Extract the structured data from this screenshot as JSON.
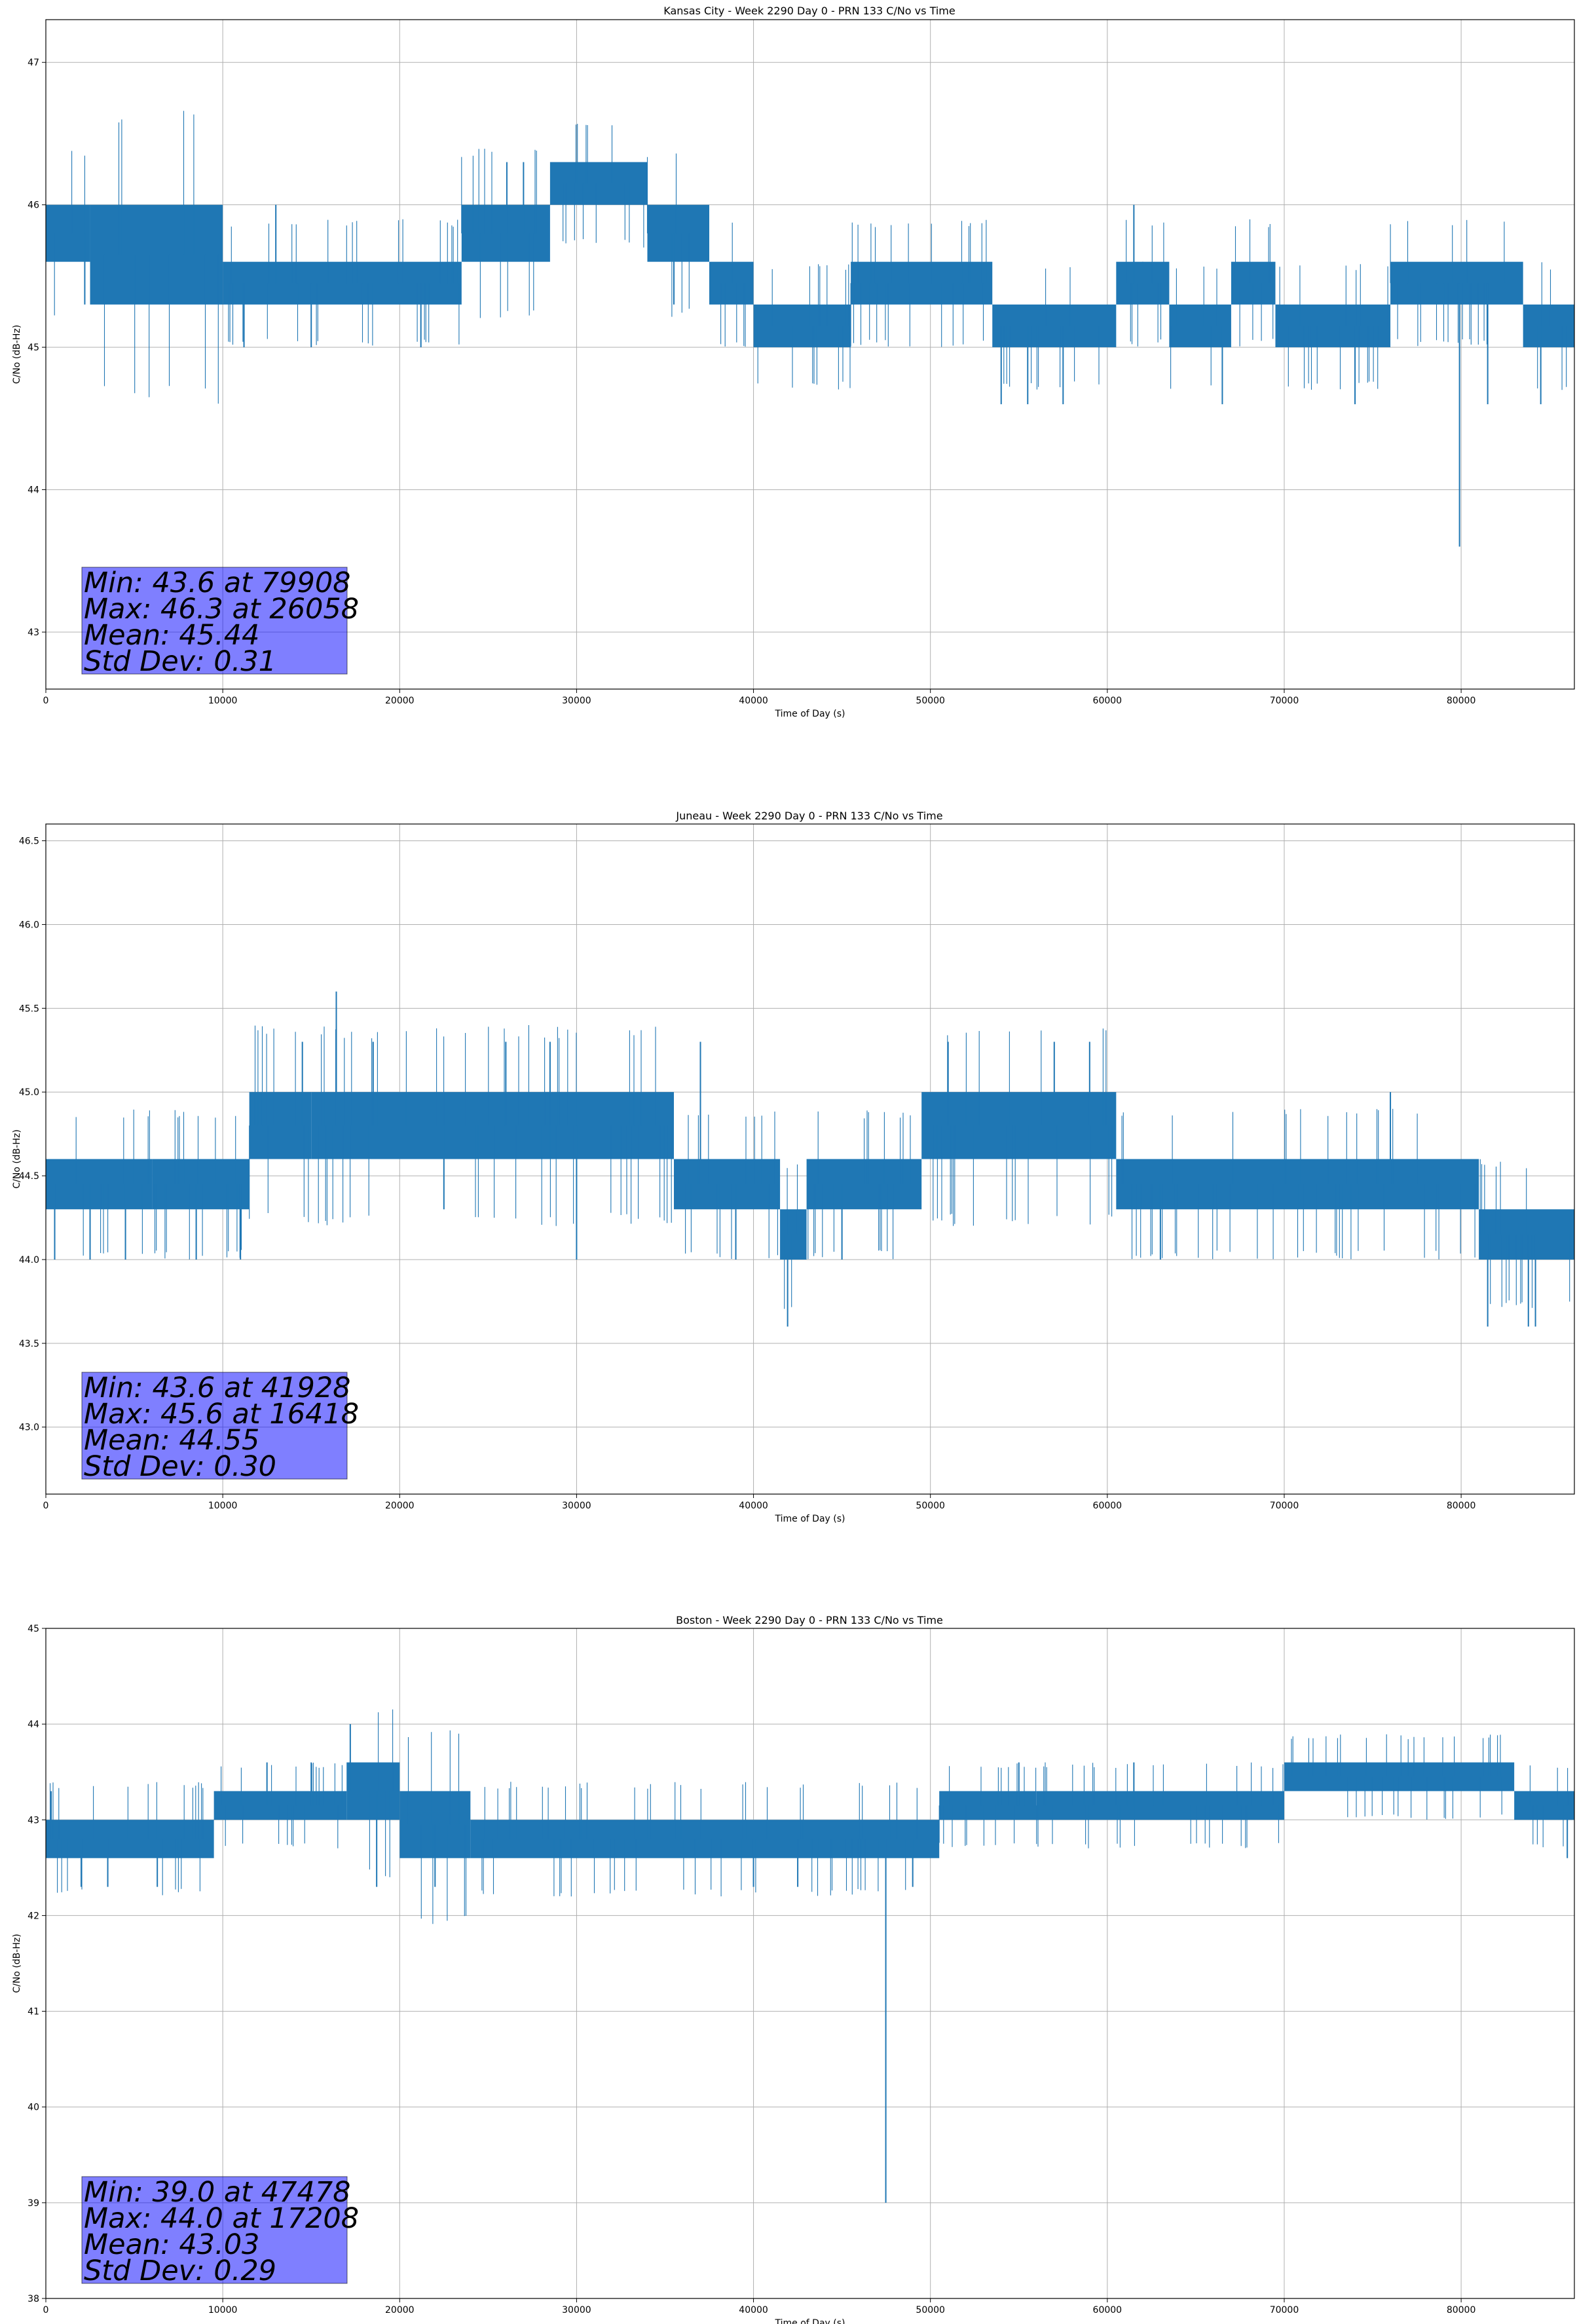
{
  "chart_data": [
    {
      "type": "line",
      "title": "Kansas City - Week 2290 Day 0 - PRN 133 C/No vs Time",
      "xlabel": "Time of Day (s)",
      "ylabel": "C/No (dB-Hz)",
      "xlim": [
        0,
        86400
      ],
      "ylim": [
        42.6,
        47.3
      ],
      "xticks": [
        0,
        10000,
        20000,
        30000,
        40000,
        50000,
        60000,
        70000,
        80000
      ],
      "yticks": [
        43,
        44,
        45,
        46,
        47
      ],
      "ytick_labels": [
        "43",
        "44",
        "45",
        "46",
        "47"
      ],
      "grid": true,
      "series": [
        {
          "color": "#1f77b4",
          "segments": [
            {
              "x0": 0,
              "x1": 2500,
              "low": 45.6,
              "high": 46.0
            },
            {
              "x0": 2500,
              "x1": 10000,
              "low": 45.3,
              "high": 46.0
            },
            {
              "x0": 10000,
              "x1": 23500,
              "low": 45.3,
              "high": 45.6
            },
            {
              "x0": 23500,
              "x1": 28500,
              "low": 45.6,
              "high": 46.0
            },
            {
              "x0": 28500,
              "x1": 34000,
              "low": 46.0,
              "high": 46.3
            },
            {
              "x0": 34000,
              "x1": 37500,
              "low": 45.6,
              "high": 46.0
            },
            {
              "x0": 37500,
              "x1": 40000,
              "low": 45.3,
              "high": 45.6
            },
            {
              "x0": 40000,
              "x1": 45500,
              "low": 45.0,
              "high": 45.3
            },
            {
              "x0": 45500,
              "x1": 53500,
              "low": 45.3,
              "high": 45.6
            },
            {
              "x0": 53500,
              "x1": 60500,
              "low": 45.0,
              "high": 45.3
            },
            {
              "x0": 60500,
              "x1": 63500,
              "low": 45.3,
              "high": 45.6
            },
            {
              "x0": 63500,
              "x1": 67000,
              "low": 45.0,
              "high": 45.3
            },
            {
              "x0": 67000,
              "x1": 69500,
              "low": 45.3,
              "high": 45.6
            },
            {
              "x0": 69500,
              "x1": 76000,
              "low": 45.0,
              "high": 45.3
            },
            {
              "x0": 76000,
              "x1": 83500,
              "low": 45.3,
              "high": 45.6
            },
            {
              "x0": 83500,
              "x1": 86400,
              "low": 45.0,
              "high": 45.3
            }
          ],
          "spikes": [
            {
              "x": 2200,
              "y": 45.3
            },
            {
              "x": 11200,
              "y": 45.0
            },
            {
              "x": 13000,
              "y": 46.0
            },
            {
              "x": 15000,
              "y": 45.0
            },
            {
              "x": 21200,
              "y": 45.0
            },
            {
              "x": 26058,
              "y": 46.3
            },
            {
              "x": 27000,
              "y": 46.3
            },
            {
              "x": 35500,
              "y": 45.3
            },
            {
              "x": 54000,
              "y": 44.6
            },
            {
              "x": 55500,
              "y": 44.6
            },
            {
              "x": 57500,
              "y": 44.6
            },
            {
              "x": 61500,
              "y": 46.0
            },
            {
              "x": 62000,
              "y": 45.6
            },
            {
              "x": 66500,
              "y": 44.6
            },
            {
              "x": 74000,
              "y": 44.6
            },
            {
              "x": 79908,
              "y": 43.6
            },
            {
              "x": 81500,
              "y": 44.6
            },
            {
              "x": 84500,
              "y": 44.6
            }
          ]
        }
      ],
      "annotation": [
        "Min: 43.6 at 79908",
        "Max: 46.3 at 26058",
        "Mean: 45.44",
        "Std Dev: 0.31"
      ]
    },
    {
      "type": "line",
      "title": "Juneau - Week 2290 Day 0 - PRN 133 C/No vs Time",
      "xlabel": "Time of Day (s)",
      "ylabel": "C/No (dB-Hz)",
      "xlim": [
        0,
        86400
      ],
      "ylim": [
        42.6,
        46.6
      ],
      "xticks": [
        0,
        10000,
        20000,
        30000,
        40000,
        50000,
        60000,
        70000,
        80000
      ],
      "yticks": [
        43.0,
        43.5,
        44.0,
        44.5,
        45.0,
        45.5,
        46.0,
        46.5
      ],
      "ytick_labels": [
        "43.0",
        "43.5",
        "44.0",
        "44.5",
        "45.0",
        "45.5",
        "46.0",
        "46.5"
      ],
      "grid": true,
      "series": [
        {
          "color": "#1f77b4",
          "segments": [
            {
              "x0": 0,
              "x1": 6000,
              "low": 44.3,
              "high": 44.6
            },
            {
              "x0": 6000,
              "x1": 11500,
              "low": 44.3,
              "high": 44.6
            },
            {
              "x0": 11500,
              "x1": 15000,
              "low": 44.6,
              "high": 45.0
            },
            {
              "x0": 15000,
              "x1": 35500,
              "low": 44.6,
              "high": 45.0
            },
            {
              "x0": 35500,
              "x1": 41500,
              "low": 44.3,
              "high": 44.6
            },
            {
              "x0": 41500,
              "x1": 43000,
              "low": 44.0,
              "high": 44.3
            },
            {
              "x0": 43000,
              "x1": 49500,
              "low": 44.3,
              "high": 44.6
            },
            {
              "x0": 49500,
              "x1": 60500,
              "low": 44.6,
              "high": 45.0
            },
            {
              "x0": 60500,
              "x1": 81000,
              "low": 44.3,
              "high": 44.6
            },
            {
              "x0": 81000,
              "x1": 86400,
              "low": 44.0,
              "high": 44.3
            }
          ],
          "spikes": [
            {
              "x": 500,
              "y": 44.0
            },
            {
              "x": 2500,
              "y": 44.0
            },
            {
              "x": 4500,
              "y": 44.0
            },
            {
              "x": 8500,
              "y": 44.0
            },
            {
              "x": 11000,
              "y": 44.0
            },
            {
              "x": 14500,
              "y": 45.3
            },
            {
              "x": 16418,
              "y": 45.6
            },
            {
              "x": 18500,
              "y": 45.3
            },
            {
              "x": 22500,
              "y": 44.3
            },
            {
              "x": 26000,
              "y": 45.3
            },
            {
              "x": 28500,
              "y": 45.3
            },
            {
              "x": 30000,
              "y": 44.0
            },
            {
              "x": 37000,
              "y": 45.3
            },
            {
              "x": 39000,
              "y": 44.0
            },
            {
              "x": 41928,
              "y": 43.6
            },
            {
              "x": 45000,
              "y": 44.0
            },
            {
              "x": 51000,
              "y": 45.3
            },
            {
              "x": 57000,
              "y": 45.3
            },
            {
              "x": 59000,
              "y": 45.3
            },
            {
              "x": 63000,
              "y": 44.0
            },
            {
              "x": 76000,
              "y": 45.0
            },
            {
              "x": 81500,
              "y": 43.6
            },
            {
              "x": 83800,
              "y": 43.6
            },
            {
              "x": 84200,
              "y": 43.6
            }
          ]
        }
      ],
      "annotation": [
        "Min: 43.6 at 41928",
        "Max: 45.6 at 16418",
        "Mean: 44.55",
        "Std Dev: 0.30"
      ]
    },
    {
      "type": "line",
      "title": "Boston - Week 2290 Day 0 - PRN 133 C/No vs Time",
      "xlabel": "Time of Day (s)",
      "ylabel": "C/No (dB-Hz)",
      "xlim": [
        0,
        86400
      ],
      "ylim": [
        38,
        45
      ],
      "xticks": [
        0,
        10000,
        20000,
        30000,
        40000,
        50000,
        60000,
        70000,
        80000
      ],
      "yticks": [
        38,
        39,
        40,
        41,
        42,
        43,
        44,
        45
      ],
      "ytick_labels": [
        "38",
        "39",
        "40",
        "41",
        "42",
        "43",
        "44",
        "45"
      ],
      "grid": true,
      "series": [
        {
          "color": "#1f77b4",
          "segments": [
            {
              "x0": 0,
              "x1": 9500,
              "low": 42.6,
              "high": 43.0
            },
            {
              "x0": 9500,
              "x1": 17000,
              "low": 43.0,
              "high": 43.3
            },
            {
              "x0": 17000,
              "x1": 20000,
              "low": 43.0,
              "high": 43.6
            },
            {
              "x0": 20000,
              "x1": 24000,
              "low": 42.6,
              "high": 43.3
            },
            {
              "x0": 24000,
              "x1": 50500,
              "low": 42.6,
              "high": 43.0
            },
            {
              "x0": 50500,
              "x1": 56000,
              "low": 43.0,
              "high": 43.3
            },
            {
              "x0": 56000,
              "x1": 70000,
              "low": 43.0,
              "high": 43.3
            },
            {
              "x0": 70000,
              "x1": 83000,
              "low": 43.3,
              "high": 43.6
            },
            {
              "x0": 83000,
              "x1": 86400,
              "low": 43.0,
              "high": 43.3
            }
          ],
          "spikes": [
            {
              "x": 300,
              "y": 43.3
            },
            {
              "x": 2000,
              "y": 42.3
            },
            {
              "x": 3500,
              "y": 42.3
            },
            {
              "x": 6300,
              "y": 42.3
            },
            {
              "x": 12500,
              "y": 43.6
            },
            {
              "x": 15000,
              "y": 43.6
            },
            {
              "x": 17208,
              "y": 44.0
            },
            {
              "x": 18700,
              "y": 42.3
            },
            {
              "x": 22000,
              "y": 42.3
            },
            {
              "x": 40000,
              "y": 42.3
            },
            {
              "x": 42500,
              "y": 42.3
            },
            {
              "x": 47478,
              "y": 39.0
            },
            {
              "x": 49000,
              "y": 42.3
            },
            {
              "x": 55000,
              "y": 43.6
            },
            {
              "x": 61500,
              "y": 43.6
            },
            {
              "x": 86000,
              "y": 42.6
            }
          ]
        }
      ],
      "annotation": [
        "Min: 39.0 at 47478",
        "Max: 44.0 at 17208",
        "Mean: 43.03",
        "Std Dev: 0.29"
      ]
    }
  ]
}
